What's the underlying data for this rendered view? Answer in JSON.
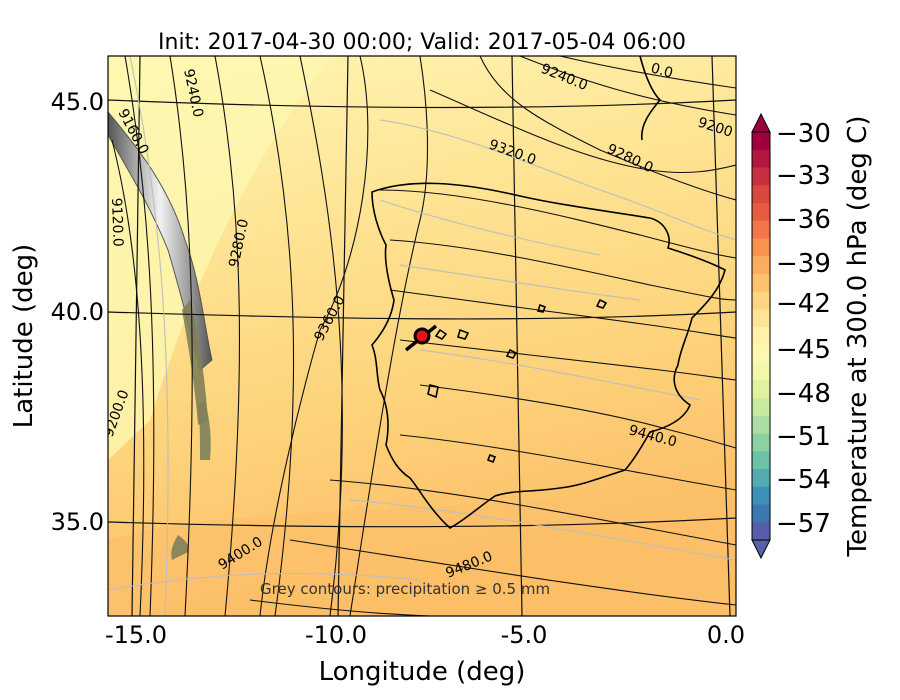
{
  "title": "Init: 2017-04-30 00:00; Valid: 2017-05-04 06:00",
  "xlabel": "Longitude (deg)",
  "ylabel": "Latitude (deg)",
  "xticks": [
    "-15.0",
    "-10.0",
    "-5.0",
    "0.0"
  ],
  "yticks": [
    "35.0",
    "40.0",
    "45.0"
  ],
  "annotation": "Grey contours: precipitation ≥ 0.5 mm",
  "colorbar": {
    "label": "Temperature at 300.0 hPa (deg C)",
    "ticks": [
      "−30",
      "−33",
      "−36",
      "−39",
      "−42",
      "−45",
      "−48",
      "−51",
      "−54",
      "−57"
    ],
    "colors": [
      "#9e0142",
      "#b2183f",
      "#c7313f",
      "#d8483f",
      "#e65c43",
      "#f3764a",
      "#f8924f",
      "#fbac5c",
      "#fdc26c",
      "#fdd47f",
      "#fee593",
      "#fff1a8",
      "#fcf8b2",
      "#f1f8a8",
      "#e1f29e",
      "#c9e99e",
      "#acdda2",
      "#8dd0a4",
      "#6bc3a7",
      "#53abad",
      "#3b91b7",
      "#3f76b4",
      "#5660a8"
    ]
  },
  "contours": [
    {
      "label": "9160.0"
    },
    {
      "label": "9120.0"
    },
    {
      "label": "9200.0"
    },
    {
      "label": "9240.0"
    },
    {
      "label": "9240.0"
    },
    {
      "label": "9280.0"
    },
    {
      "label": "9280.0"
    },
    {
      "label": "9320.0"
    },
    {
      "label": "9360.0"
    },
    {
      "label": "9400.0"
    },
    {
      "label": "9440.0"
    },
    {
      "label": "9480.0"
    },
    {
      "label": "9200"
    },
    {
      "label": "0.0"
    }
  ],
  "marker": {
    "lon": -7.5,
    "lat": 39.4,
    "color": "#e8101a"
  }
}
